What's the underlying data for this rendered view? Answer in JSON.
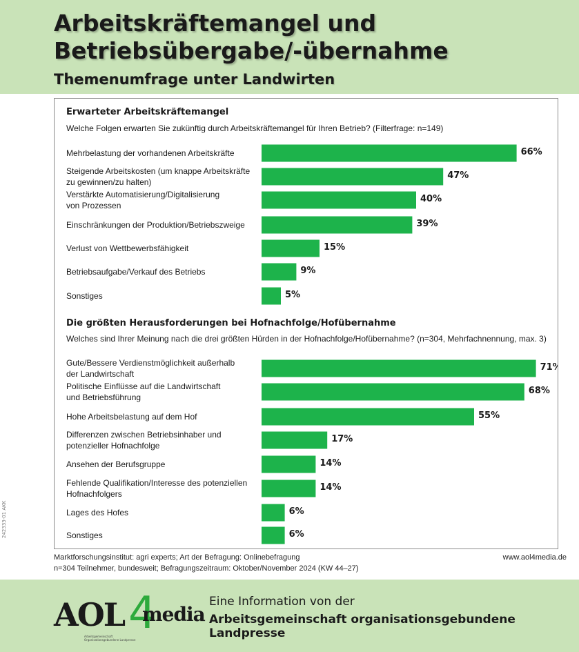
{
  "header": {
    "title_line1": "Arbeitskräftemangel und",
    "title_line2": "Betriebsübergabe/-übernahme",
    "subtitle": "Themenumfrage unter Landwirten"
  },
  "colors": {
    "bar": "#1db34b",
    "background": "#c9e3b8",
    "panel": "#ffffff"
  },
  "chart_data": [
    {
      "type": "bar",
      "orientation": "horizontal",
      "title": "Erwarteter Arbeitskräftemangel",
      "question": "Welche Folgen erwarten Sie zukünftig durch Arbeitskräftemangel für Ihren Betrieb? (Filterfrage: n=149)",
      "categories": [
        [
          "Mehrbelastung der vorhandenen Arbeitskräfte"
        ],
        [
          "Steigende Arbeitskosten (um knappe Arbeitskräfte",
          "zu gewinnen/zu halten)"
        ],
        [
          "Verstärkte Automatisierung/Digitalisierung",
          "von Prozessen"
        ],
        [
          "Einschränkungen der Produktion/Betriebszweige"
        ],
        [
          "Verlust von Wettbewerbsfähigkeit"
        ],
        [
          "Betriebsaufgabe/Verkauf des Betriebs"
        ],
        [
          "Sonstiges"
        ]
      ],
      "values": [
        66,
        47,
        40,
        39,
        15,
        9,
        5
      ],
      "value_labels": [
        "66%",
        "47%",
        "40%",
        "39%",
        "15%",
        "9%",
        "5%"
      ],
      "unit": "%"
    },
    {
      "type": "bar",
      "orientation": "horizontal",
      "title": "Die größten Herausforderungen bei Hofnachfolge/Hofübernahme",
      "question": "Welches sind Ihrer Meinung nach die drei größten Hürden in der Hofnachfolge/Hofübernahme? (n=304, Mehrfachnennung, max. 3)",
      "categories": [
        [
          "Gute/Bessere Verdienstmöglichkeit außerhalb",
          "der Landwirtschaft"
        ],
        [
          "Politische Einflüsse auf die Landwirtschaft",
          "und Betriebsführung"
        ],
        [
          "Hohe Arbeitsbelastung auf dem Hof"
        ],
        [
          "Differenzen zwischen Betriebsinhaber und",
          "potenzieller Hofnachfolge"
        ],
        [
          "Ansehen der Berufsgruppe"
        ],
        [
          "Fehlende Qualifikation/Interesse des potenziellen",
          "Hofnachfolgers"
        ],
        [
          "Lages des Hofes"
        ],
        [
          "Sonstiges"
        ]
      ],
      "values": [
        71,
        68,
        55,
        17,
        14,
        14,
        6,
        6
      ],
      "value_labels": [
        "71%",
        "68%",
        "55%",
        "17%",
        "14%",
        "14%",
        "6%",
        "6%"
      ],
      "unit": "%"
    }
  ],
  "footer": {
    "source_line1": "Marktforschungsinstitut: agri experts; Art der Befragung: Onlinebefragung",
    "source_line2": "n=304 Teilnehmer, bundesweit; Befragungszeitraum: Oktober/November 2024 (KW 44–27)",
    "website": "www.aol4media.de",
    "side_code": "242333-01 AKK"
  },
  "bottom": {
    "logo_a": "AOL",
    "logo_4": "4",
    "logo_media": "media",
    "logo_small": "Arbeitsgemeinschaft Organisationsgebundene Landpresse",
    "info_line1": "Eine Information von der",
    "info_line2": "Arbeitsgemeinschaft organisationsgebundene Landpresse"
  }
}
